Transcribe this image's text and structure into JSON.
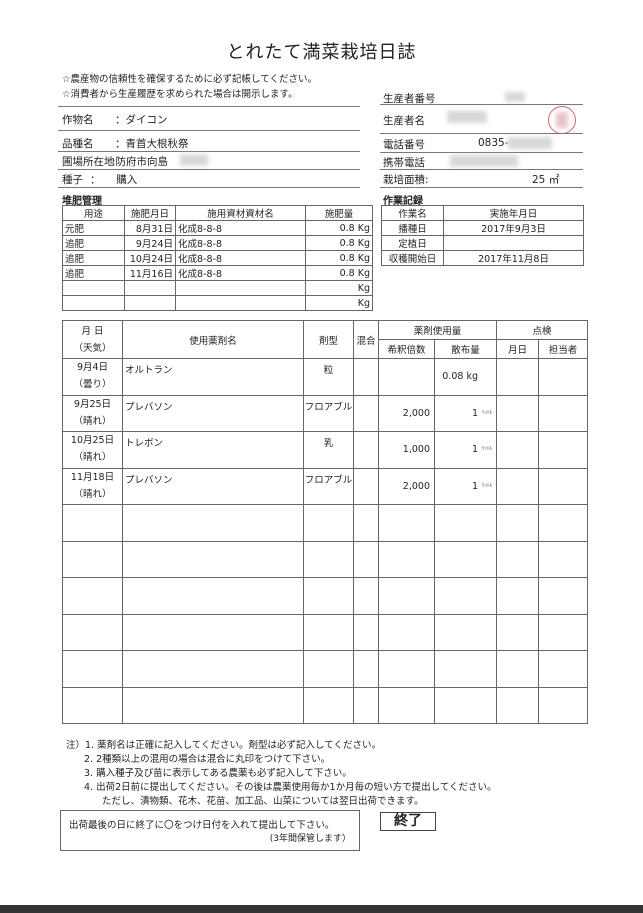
{
  "title": "とれたて満菜栽培日誌",
  "notes_top": [
    "☆農産物の信頼性を確保するために必ず記帳してください。",
    "☆消費者から生産履歴を求められた場合は開示します。"
  ],
  "info_left": [
    {
      "label": "作物名",
      "value": "：ダイコン"
    },
    {
      "label": "品種名",
      "value": "：青首大根秋祭"
    },
    {
      "label": "圃場所在地",
      "value": ":防府市向島"
    },
    {
      "label": "種子",
      "value": "：　　購入"
    }
  ],
  "info_right": [
    {
      "label": "生産者番号",
      "value": ""
    },
    {
      "label": "生産者名",
      "value": ""
    },
    {
      "label": "電話番号",
      "value": "0835-"
    },
    {
      "label": "携帯電話",
      "value": ""
    },
    {
      "label": "栽培面積:",
      "value": "25 ㎡"
    }
  ],
  "compost": {
    "title": "堆肥管理",
    "headers": [
      "用途",
      "施肥月日",
      "施用資材資材名",
      "施肥量"
    ],
    "rows": [
      [
        "元肥",
        "8月31日",
        "化成8-8-8",
        "0.8 Kg"
      ],
      [
        "追肥",
        "9月24日",
        "化成8-8-8",
        "0.8 Kg"
      ],
      [
        "追肥",
        "10月24日",
        "化成8-8-8",
        "0.8 Kg"
      ],
      [
        "追肥",
        "11月16日",
        "化成8-8-8",
        "0.8 Kg"
      ],
      [
        "",
        "",
        "",
        "Kg"
      ],
      [
        "",
        "",
        "",
        "Kg"
      ]
    ]
  },
  "work": {
    "title": "作業記録",
    "headers": [
      "作業名",
      "実施年月日"
    ],
    "rows": [
      [
        "播種日",
        "2017年9月3日"
      ],
      [
        "定植日",
        ""
      ],
      [
        "収穫開始日",
        "2017年11月8日"
      ]
    ]
  },
  "pesticide": {
    "headers": {
      "date": "月 日",
      "weather": "（天気）",
      "name": "使用薬剤名",
      "form": "剤型",
      "mix": "混合",
      "usage": "薬剤使用量",
      "dilution": "希釈倍数",
      "amount": "散布量",
      "check": "点検",
      "check_date": "月日",
      "check_person": "担当者"
    },
    "rows": [
      {
        "date": "9月4日",
        "weather": "（曇り）",
        "name": "オルトラン",
        "form": "粒",
        "mix": "",
        "dilution": "",
        "amount": "0.08 kg",
        "unit": ""
      },
      {
        "date": "9月25日",
        "weather": "（晴れ）",
        "name": "プレバソン",
        "form": "フロアブル",
        "mix": "",
        "dilution": "2,000",
        "amount": "1",
        "unit": "ﾘｯﾄﾙ"
      },
      {
        "date": "10月25日",
        "weather": "（晴れ）",
        "name": "トレボン",
        "form": "乳",
        "mix": "",
        "dilution": "1,000",
        "amount": "1",
        "unit": "ﾘｯﾄﾙ"
      },
      {
        "date": "11月18日",
        "weather": "（晴れ）",
        "name": "プレバソン",
        "form": "フロアブル",
        "mix": "",
        "dilution": "2,000",
        "amount": "1",
        "unit": "ﾘｯﾄﾙ"
      }
    ]
  },
  "notes_bottom": [
    "注）1.  薬剤名は正確に記入してください。剤型は必ず記入してください。",
    "2.  2種類以上の混用の場合は混合に丸印をつけて下さい。",
    "3.  購入種子及び苗に表示してある農薬も必ず記入して下さい。",
    "4.  出荷2日前に提出してください。その後は農薬使用毎か1か月毎の短い方で提出してください。",
    "ただし、漬物類、花木、花苗、加工品、山菜については翌日出荷できます。"
  ],
  "end_box": {
    "line1": "出荷最後の日に終了に〇をつけ日付を入れて提出して下さい。",
    "line2": "(3年間保管します）",
    "end_label": "終了"
  },
  "colors": {
    "stamp": "#e06070",
    "line": "#666666"
  }
}
